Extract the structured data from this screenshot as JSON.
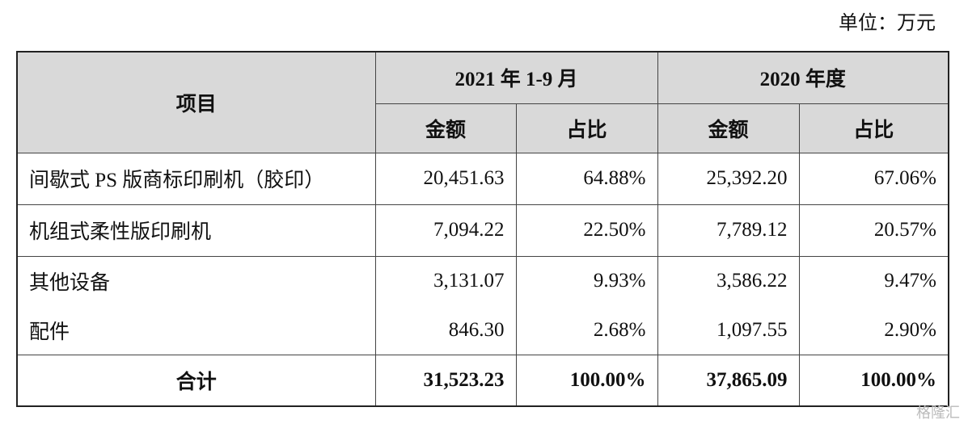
{
  "unit": "单位：万元",
  "table": {
    "header": {
      "item": "项目",
      "periods": [
        "2021 年 1-9 月",
        "2020 年度"
      ],
      "subcols": [
        "金额",
        "占比",
        "金额",
        "占比"
      ]
    },
    "rows": [
      [
        "间歇式 PS 版商标印刷机（胶印）",
        "20,451.63",
        "64.88%",
        "25,392.20",
        "67.06%"
      ],
      [
        "机组式柔性版印刷机",
        "7,094.22",
        "22.50%",
        "7,789.12",
        "20.57%"
      ],
      [
        "其他设备",
        "3,131.07",
        "9.93%",
        "3,586.22",
        "9.47%"
      ],
      [
        "配件",
        "846.30",
        "2.68%",
        "1,097.55",
        "2.90%"
      ]
    ],
    "total": [
      "合计",
      "31,523.23",
      "100.00%",
      "37,865.09",
      "100.00%"
    ]
  },
  "watermark": "格隆汇"
}
